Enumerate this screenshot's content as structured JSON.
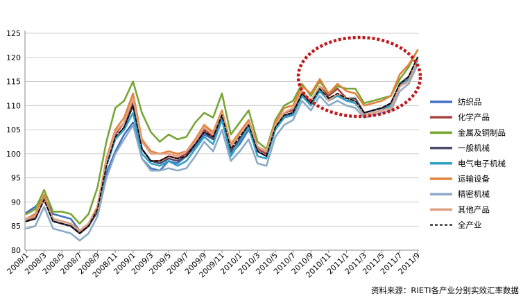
{
  "source_note": "资料来源：RIETI各产业分别实效汇率数据",
  "colors": {
    "highlight_ellipse": "#c0181b",
    "axis": "#888888",
    "grid": "#bfbfbf"
  },
  "chart_data": {
    "type": "line",
    "title": "",
    "xlabel": "",
    "ylabel": "",
    "ylim": [
      80,
      125
    ],
    "yticks": [
      80,
      85,
      90,
      95,
      100,
      105,
      110,
      115,
      120,
      125
    ],
    "grid": "horizontal",
    "legend_position": "right",
    "x_tick_labels": [
      "2008/1",
      "2008/3",
      "2008/5",
      "2008/7",
      "2008/9",
      "2008/11",
      "2009/1",
      "2009/3",
      "2009/5",
      "2009/7",
      "2009/9",
      "2009/11",
      "2010/1",
      "2010/3",
      "2010/5",
      "2010/7",
      "2010/9",
      "2010/11",
      "2011/1",
      "2011/3",
      "2011/5",
      "2011/7",
      "2011/9"
    ],
    "x": [
      "2008/1",
      "2008/2",
      "2008/3",
      "2008/4",
      "2008/5",
      "2008/6",
      "2008/7",
      "2008/8",
      "2008/9",
      "2008/10",
      "2008/11",
      "2008/12",
      "2009/1",
      "2009/2",
      "2009/3",
      "2009/4",
      "2009/5",
      "2009/6",
      "2009/7",
      "2009/8",
      "2009/9",
      "2009/10",
      "2009/11",
      "2009/12",
      "2010/1",
      "2010/2",
      "2010/3",
      "2010/4",
      "2010/5",
      "2010/6",
      "2010/7",
      "2010/8",
      "2010/9",
      "2010/10",
      "2010/11",
      "2010/12",
      "2011/1",
      "2011/2",
      "2011/3",
      "2011/4",
      "2011/5",
      "2011/6",
      "2011/7",
      "2011/8",
      "2011/9"
    ],
    "series": [
      {
        "name": "纺织品",
        "color": "#4472c4",
        "dashed": false,
        "values": [
          87.8,
          89.0,
          91.0,
          87.5,
          87.0,
          86.5,
          84.0,
          85.0,
          88.0,
          96.0,
          100.5,
          104.0,
          106.5,
          99.0,
          97.0,
          96.5,
          98.5,
          98.0,
          99.5,
          101.5,
          104.0,
          103.0,
          107.5,
          100.0,
          102.0,
          105.0,
          101.0,
          100.0,
          105.5,
          107.5,
          108.5,
          112.5,
          110.5,
          113.5,
          111.5,
          112.0,
          111.0,
          111.0,
          108.5,
          109.0,
          109.5,
          110.0,
          114.0,
          115.5,
          119.5
        ]
      },
      {
        "name": "化学产品",
        "color": "#a6403e",
        "dashed": false,
        "values": [
          86.0,
          87.0,
          90.5,
          86.0,
          85.5,
          85.0,
          83.5,
          85.0,
          88.5,
          98.0,
          104.0,
          106.5,
          110.5,
          101.0,
          98.5,
          98.5,
          99.5,
          99.0,
          100.0,
          102.5,
          105.0,
          103.5,
          108.5,
          101.5,
          104.0,
          106.5,
          101.0,
          100.0,
          106.0,
          108.5,
          109.0,
          113.0,
          111.0,
          114.0,
          112.0,
          113.5,
          111.5,
          111.0,
          108.0,
          108.5,
          109.0,
          110.0,
          114.0,
          115.0,
          120.0
        ]
      },
      {
        "name": "金属及铜制品",
        "color": "#77a534",
        "dashed": false,
        "values": [
          87.5,
          88.5,
          92.5,
          88.0,
          88.0,
          87.5,
          85.5,
          87.5,
          93.0,
          102.5,
          109.5,
          111.0,
          115.0,
          108.5,
          104.5,
          102.5,
          104.0,
          103.0,
          103.5,
          106.5,
          108.5,
          107.5,
          112.5,
          104.0,
          106.5,
          109.0,
          102.5,
          101.0,
          107.0,
          110.0,
          111.0,
          114.5,
          112.0,
          115.0,
          112.5,
          114.0,
          113.5,
          113.5,
          110.5,
          111.0,
          111.5,
          112.0,
          115.5,
          118.0,
          121.5
        ]
      },
      {
        "name": "一般机械",
        "color": "#4a4a6a",
        "dashed": false,
        "values": [
          86.0,
          86.5,
          90.5,
          86.0,
          85.5,
          85.0,
          83.5,
          85.0,
          88.0,
          97.5,
          103.0,
          105.5,
          110.0,
          101.0,
          98.5,
          98.0,
          99.0,
          98.5,
          99.5,
          102.0,
          104.5,
          103.0,
          108.0,
          100.5,
          103.0,
          106.0,
          100.5,
          99.5,
          105.5,
          108.0,
          108.5,
          112.5,
          110.5,
          113.5,
          111.5,
          112.0,
          111.5,
          111.5,
          108.5,
          109.0,
          109.5,
          110.5,
          114.5,
          116.0,
          120.0
        ]
      },
      {
        "name": "电气电子机械",
        "color": "#31a2c4",
        "dashed": false,
        "values": [
          86.5,
          87.5,
          91.0,
          86.5,
          86.0,
          85.5,
          84.0,
          85.5,
          88.5,
          97.5,
          103.0,
          105.0,
          108.5,
          100.0,
          98.0,
          97.5,
          98.5,
          97.5,
          98.5,
          101.0,
          103.5,
          102.0,
          107.0,
          99.5,
          102.5,
          105.5,
          99.5,
          99.0,
          105.0,
          107.5,
          108.0,
          112.0,
          110.0,
          113.0,
          111.0,
          112.0,
          111.0,
          110.5,
          108.0,
          108.5,
          109.0,
          110.0,
          114.0,
          115.5,
          119.5
        ]
      },
      {
        "name": "运输设备",
        "color": "#e3823b",
        "dashed": false,
        "values": [
          86.5,
          87.5,
          91.5,
          86.5,
          86.0,
          85.5,
          84.0,
          85.5,
          89.0,
          99.0,
          105.0,
          107.5,
          112.5,
          103.0,
          100.5,
          100.0,
          100.5,
          100.0,
          100.5,
          103.0,
          106.0,
          104.5,
          109.0,
          102.0,
          104.5,
          107.0,
          101.5,
          100.5,
          106.5,
          109.5,
          110.0,
          114.0,
          112.5,
          115.5,
          112.5,
          114.5,
          113.0,
          112.5,
          110.0,
          110.5,
          111.0,
          112.0,
          116.5,
          118.5,
          121.5
        ]
      },
      {
        "name": "精密机械",
        "color": "#8aa9c6",
        "dashed": false,
        "values": [
          84.5,
          85.0,
          89.0,
          84.5,
          84.0,
          83.5,
          82.0,
          83.5,
          87.0,
          95.0,
          100.0,
          103.0,
          106.0,
          99.0,
          96.5,
          96.5,
          97.0,
          96.5,
          97.0,
          99.5,
          102.5,
          100.5,
          105.0,
          98.5,
          100.5,
          103.0,
          98.0,
          97.5,
          103.5,
          106.0,
          107.0,
          111.0,
          109.0,
          112.0,
          110.0,
          111.0,
          110.0,
          109.5,
          107.5,
          108.0,
          108.5,
          109.0,
          113.0,
          114.5,
          118.5
        ]
      },
      {
        "name": "其他产品",
        "color": "#e0a183",
        "dashed": false,
        "values": [
          86.5,
          87.0,
          90.5,
          86.5,
          86.0,
          85.5,
          84.0,
          85.5,
          88.5,
          98.5,
          104.5,
          106.5,
          111.5,
          102.5,
          100.0,
          100.0,
          100.0,
          99.5,
          100.5,
          102.5,
          105.5,
          104.0,
          108.5,
          101.5,
          104.0,
          106.5,
          101.5,
          100.5,
          106.0,
          108.5,
          109.5,
          113.0,
          111.0,
          114.0,
          111.0,
          112.5,
          111.5,
          111.0,
          108.0,
          108.5,
          109.0,
          109.5,
          114.0,
          115.0,
          120.0
        ]
      },
      {
        "name": "全产业",
        "color": "#000000",
        "dashed": true,
        "values": [
          86.0,
          86.5,
          90.5,
          86.0,
          85.5,
          85.0,
          83.5,
          85.0,
          88.5,
          97.5,
          103.5,
          105.5,
          110.0,
          101.0,
          98.5,
          98.5,
          99.5,
          99.0,
          99.5,
          102.0,
          104.5,
          103.5,
          108.0,
          101.0,
          103.5,
          106.0,
          100.5,
          99.5,
          105.5,
          108.0,
          108.5,
          112.5,
          110.5,
          113.5,
          111.5,
          112.5,
          111.5,
          111.0,
          108.5,
          109.0,
          109.5,
          110.5,
          114.5,
          116.0,
          120.0
        ]
      }
    ]
  }
}
